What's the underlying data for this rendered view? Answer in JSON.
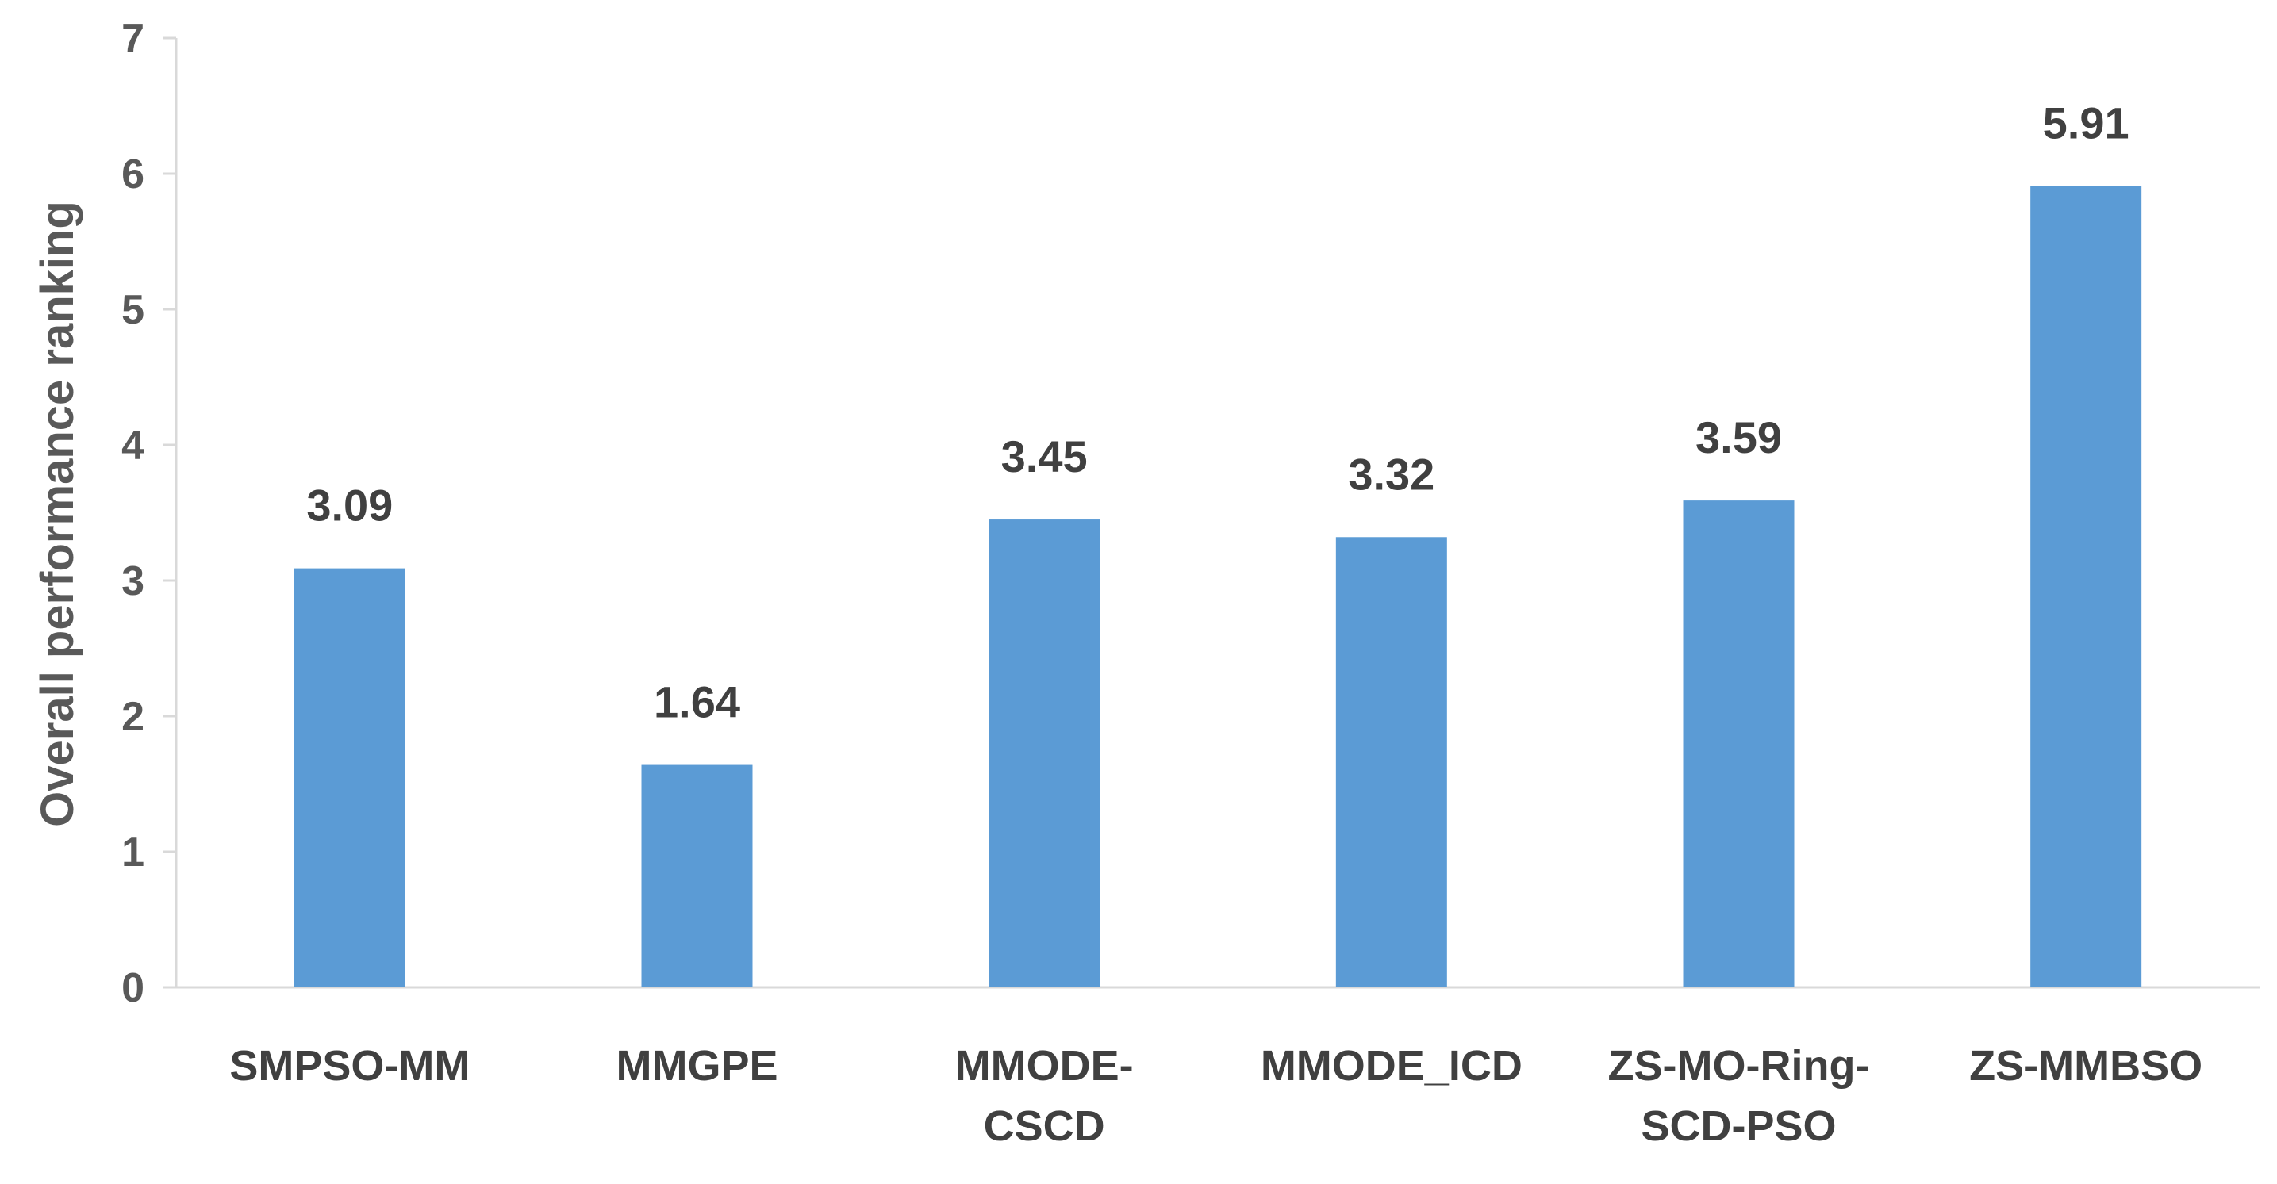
{
  "chart_data": {
    "type": "bar",
    "title": "",
    "xlabel": "",
    "ylabel": "Overall performance ranking",
    "categories": [
      [
        "SMPSO-MM"
      ],
      [
        "MMGPE"
      ],
      [
        "MMODE-",
        "CSCD"
      ],
      [
        "MMODE_ICD"
      ],
      [
        "ZS-MO-Ring-",
        "SCD-PSO"
      ],
      [
        "ZS-MMBSO"
      ]
    ],
    "values": [
      3.09,
      1.64,
      3.45,
      3.32,
      3.59,
      5.91
    ],
    "data_labels": [
      "3.09",
      "1.64",
      "3.45",
      "3.32",
      "3.59",
      "5.91"
    ],
    "ylim": [
      0,
      7
    ],
    "yticks": [
      "0",
      "1",
      "2",
      "3",
      "4",
      "5",
      "6",
      "7"
    ],
    "grid": false,
    "legend": "none",
    "bar_color": "#5b9bd5",
    "axis_color": "#d9d9d9"
  }
}
